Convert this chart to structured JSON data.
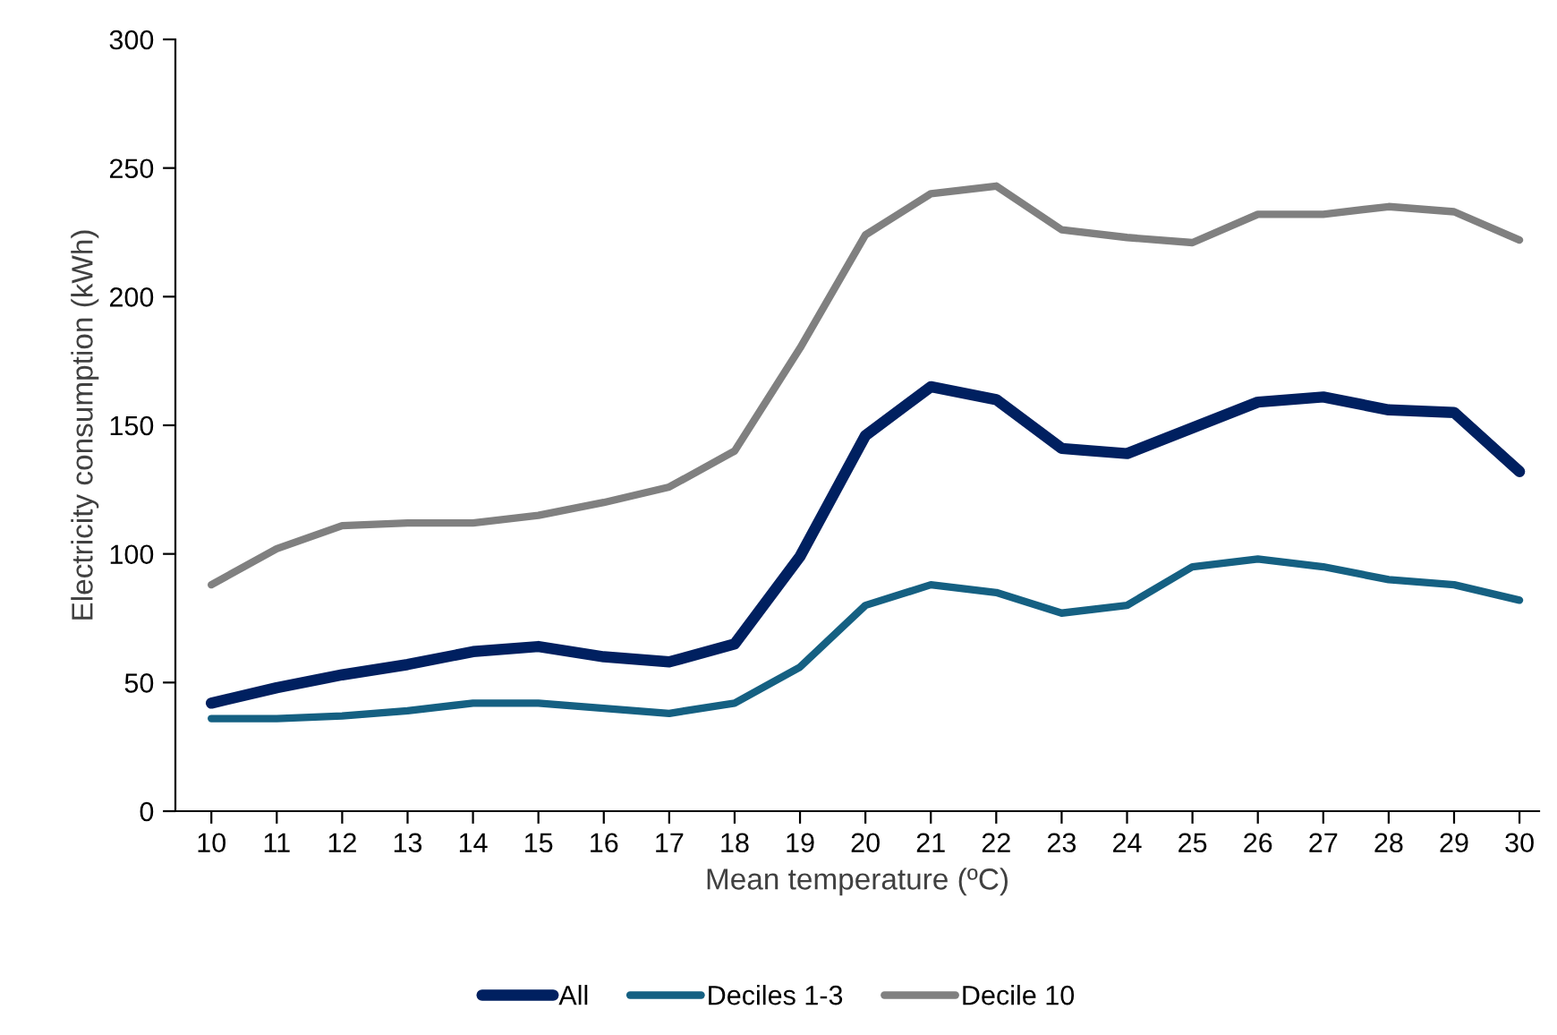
{
  "chart_data": {
    "type": "line",
    "xlabel": "Mean temperature (ºC)",
    "ylabel": "Electricity consumption (kWh)",
    "categories": [
      "10",
      "11",
      "12",
      "13",
      "14",
      "15",
      "16",
      "17",
      "18",
      "19",
      "20",
      "21",
      "22",
      "23",
      "24",
      "25",
      "26",
      "27",
      "28",
      "29",
      "30"
    ],
    "series": [
      {
        "name": "All",
        "color": "#002060",
        "values": [
          42,
          48,
          53,
          57,
          62,
          64,
          60,
          58,
          65,
          99,
          146,
          165,
          160,
          141,
          139,
          149,
          159,
          161,
          156,
          155,
          132
        ]
      },
      {
        "name": "Deciles 1-3",
        "color": "#156082",
        "values": [
          36,
          36,
          37,
          39,
          42,
          42,
          40,
          38,
          42,
          56,
          80,
          88,
          85,
          77,
          80,
          95,
          98,
          95,
          90,
          88,
          82
        ]
      },
      {
        "name": "Decile 10",
        "color": "#808080",
        "values": [
          88,
          102,
          111,
          112,
          112,
          115,
          120,
          126,
          140,
          180,
          224,
          240,
          243,
          226,
          223,
          221,
          232,
          232,
          235,
          233,
          222
        ]
      }
    ],
    "ylim": [
      0,
      300
    ],
    "yticks": [
      0,
      50,
      100,
      150,
      200,
      250,
      300
    ],
    "grid": false,
    "legend": "bottom",
    "marker": "none",
    "line_style": "solid"
  }
}
